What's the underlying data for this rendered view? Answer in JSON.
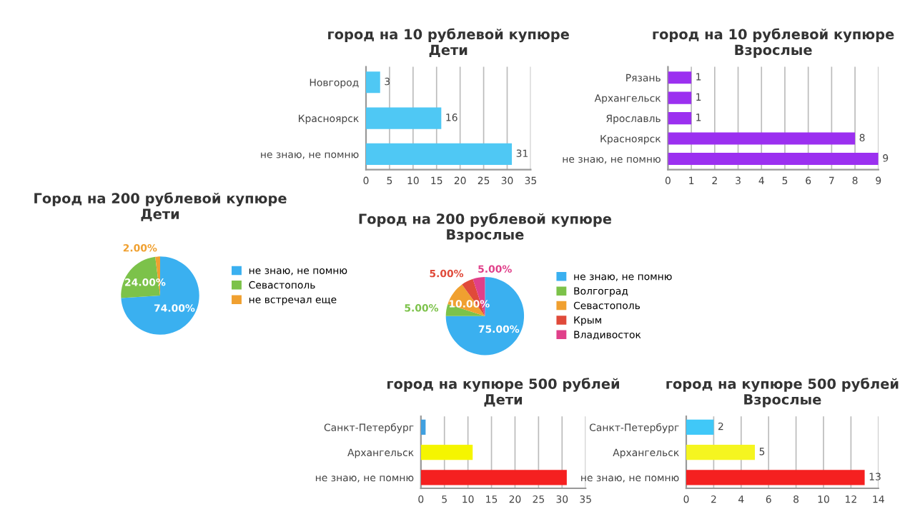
{
  "chart_data": [
    {
      "type": "bar",
      "orientation": "horizontal",
      "title": "город на 10 рублевой купюре\nДети",
      "categories": [
        "Новгород",
        "Красноярск",
        "не знаю, не помню"
      ],
      "values": [
        3,
        16,
        31
      ],
      "colors": [
        "#4fc8f4",
        "#4fc8f4",
        "#4fc8f4"
      ],
      "xlim": [
        0,
        35
      ],
      "xticks": [
        0,
        5,
        10,
        15,
        20,
        25,
        30,
        35
      ],
      "grid": "x",
      "data_labels": true
    },
    {
      "type": "bar",
      "orientation": "horizontal",
      "title": "город на 10 рублевой купюре\nВзрослые",
      "categories": [
        "Рязань",
        "Архангельск",
        "Ярославль",
        "Красноярск",
        "не знаю, не помню"
      ],
      "values": [
        1,
        1,
        1,
        8,
        9
      ],
      "colors": [
        "#9b30f0",
        "#9b30f0",
        "#9b30f0",
        "#9b30f0",
        "#9b30f0"
      ],
      "xlim": [
        0,
        9
      ],
      "xticks": [
        0,
        1,
        2,
        3,
        4,
        5,
        6,
        7,
        8,
        9
      ],
      "grid": "x",
      "data_labels": true
    },
    {
      "type": "pie",
      "title": "Город на 200 рублевой купюре\nДети",
      "categories": [
        "не знаю, не помню",
        "Севастополь",
        "не встречал еще"
      ],
      "values": [
        74,
        24,
        2
      ],
      "value_labels": [
        "74.00%",
        "24.00%",
        "2.00%"
      ],
      "colors": [
        "#3ab0f0",
        "#7cc24a",
        "#f0a030"
      ],
      "legend": "right"
    },
    {
      "type": "pie",
      "title": "Город на 200 рублевой купюре\nВзрослые",
      "categories": [
        "не знаю, не помню",
        "Волгоград",
        "Севастополь",
        "Крым",
        "Владивосток"
      ],
      "values": [
        75,
        5,
        10,
        5,
        5
      ],
      "value_labels": [
        "75.00%",
        "5.00%",
        "10.00%",
        "5.00%",
        "5.00%"
      ],
      "colors": [
        "#3ab0f0",
        "#7cc24a",
        "#f0a030",
        "#e04a3a",
        "#e0408a"
      ],
      "legend": "right"
    },
    {
      "type": "bar",
      "orientation": "horizontal",
      "title": "город на купюре 500 рублей\nДети",
      "categories": [
        "Санкт-Петербург",
        "Архангельск",
        "не знаю, не помню"
      ],
      "values": [
        1,
        11,
        31
      ],
      "colors": [
        "#40a0e0",
        "#f5f500",
        "#f52020"
      ],
      "xlim": [
        0,
        35
      ],
      "xticks": [
        0,
        5,
        10,
        15,
        20,
        25,
        30,
        35
      ],
      "grid": "x"
    },
    {
      "type": "bar",
      "orientation": "horizontal",
      "title": "город на купюре 500 рублей\nВзрослые",
      "categories": [
        "Санкт-Петербург",
        "Архангельск",
        "не знаю, не помню"
      ],
      "values": [
        2,
        5,
        13
      ],
      "colors": [
        "#40c8f8",
        "#f5f520",
        "#f52020"
      ],
      "xlim": [
        0,
        14
      ],
      "xticks": [
        0,
        2,
        4,
        6,
        8,
        10,
        12,
        14
      ],
      "grid": "x",
      "data_labels": true
    }
  ]
}
